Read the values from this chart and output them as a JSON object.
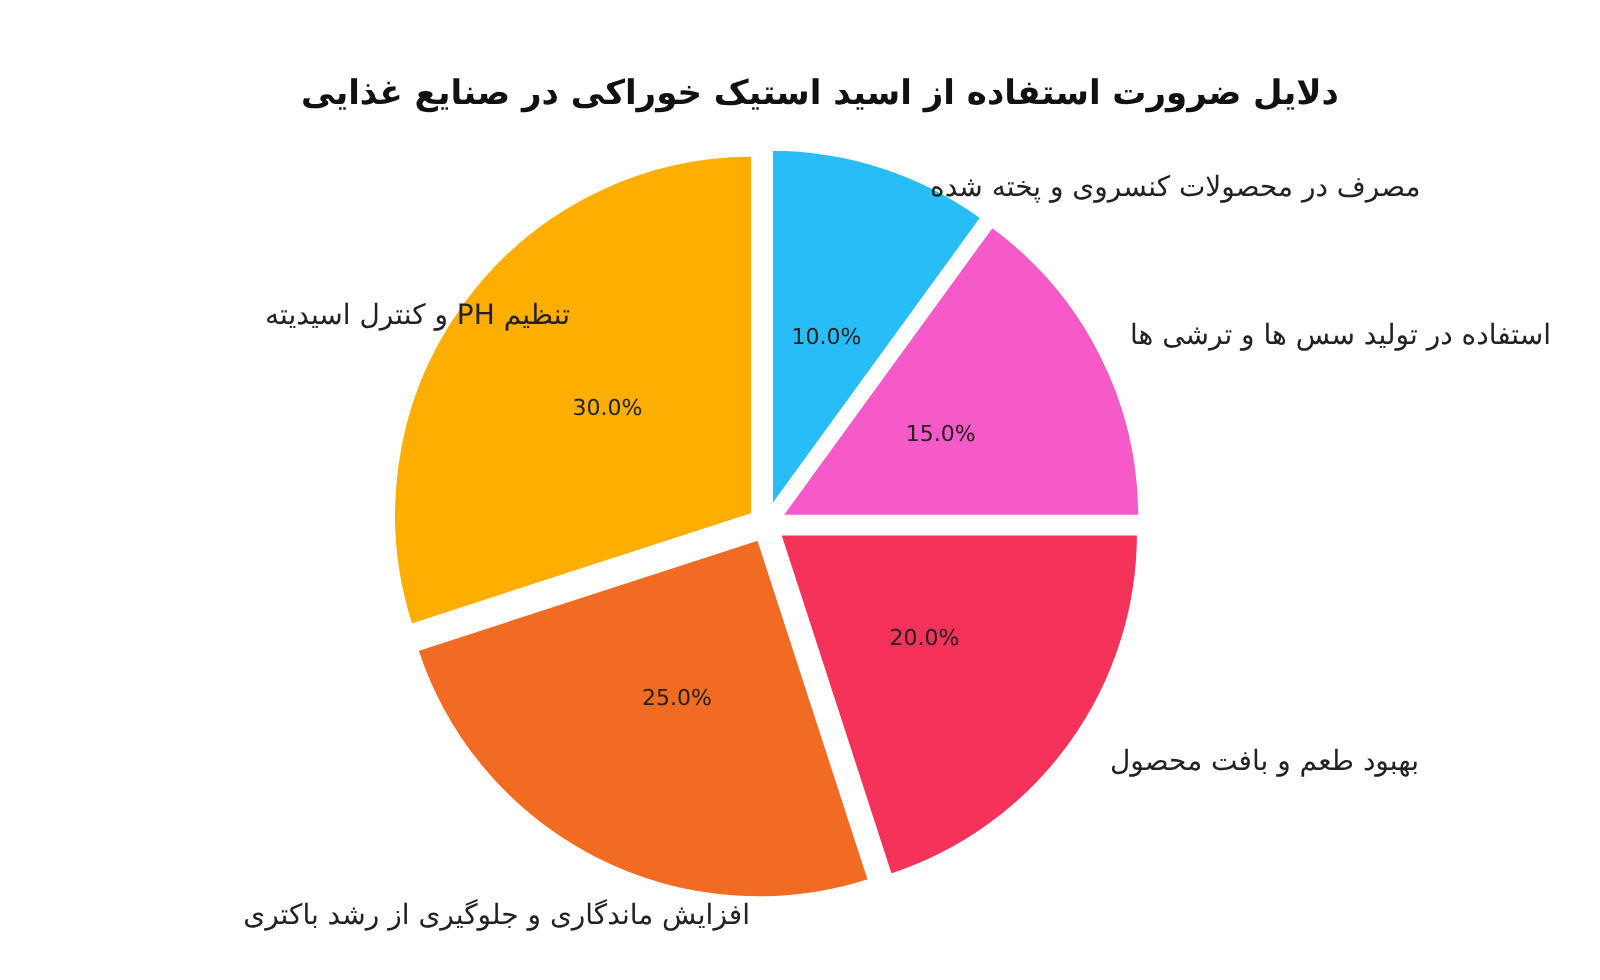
{
  "chart_data": {
    "type": "pie",
    "title": "دلایل ضرورت استفاده از اسید استیک خوراکی در صنایع غذایی",
    "categories": [
      "مصرف در محصولات کنسروی و پخته شده",
      "استفاده در تولید سس ها و ترشی ها",
      "بهبود طعم و بافت محصول",
      "افزایش ماندگاری و جلوگیری از رشد باکتری",
      "تنظیم PH و کنترل اسیدیته"
    ],
    "values": [
      10,
      15,
      20,
      25,
      30
    ],
    "colors": [
      "#29bdf7",
      "#f55ac8",
      "#f5325a",
      "#f26b22",
      "#fdae00"
    ],
    "value_labels": [
      "10.0%",
      "15.0%",
      "20.0%",
      "25.0%",
      "30.0%"
    ]
  }
}
